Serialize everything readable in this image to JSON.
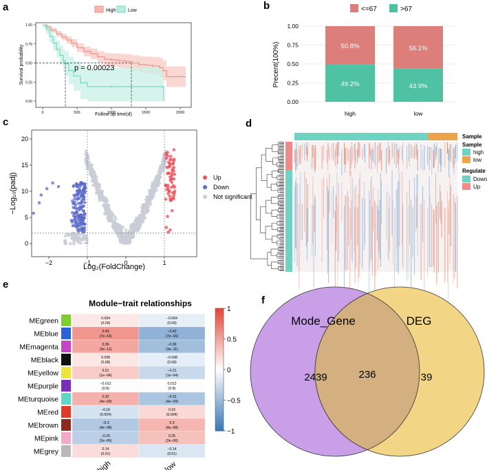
{
  "panel_letters": {
    "a": "a",
    "b": "b",
    "c": "c",
    "d": "d",
    "e": "e",
    "f": "f"
  },
  "colors": {
    "high": "#f08a80",
    "low": "#6dd6bd",
    "up": "#f0505a",
    "down": "#5a6ac8",
    "ns": "#c9ccd6",
    "teal": "#6fd3c4",
    "orange": "#eba44a",
    "venn_left": "#c9a0e8",
    "venn_right": "#f3d586",
    "overlap": "#d4b080",
    "hm_low": "#3c78b8",
    "hm_high": "#e8503c"
  },
  "chart_data": [
    {
      "type": "line",
      "panel": "a",
      "title": "",
      "legend": [
        "High",
        "Low"
      ],
      "xlabel": "Follow up time(d)",
      "ylabel": "Survival probability",
      "xlim": [
        0,
        2100
      ],
      "ylim": [
        0,
        1
      ],
      "xticks": [
        0,
        500,
        1000,
        1500,
        2000
      ],
      "yticks": [
        "0.00",
        "0.25",
        "0.50",
        "0.75",
        "1.00"
      ],
      "annotation": "p = 0.00023",
      "median_survival": {
        "low": 330,
        "high": 1290
      },
      "series": [
        {
          "name": "High",
          "x": [
            0,
            60,
            120,
            200,
            280,
            350,
            420,
            500,
            600,
            700,
            800,
            900,
            1000,
            1100,
            1200,
            1300,
            1400,
            1500,
            1600,
            1700,
            1750,
            1800,
            2080
          ],
          "y": [
            1,
            0.97,
            0.93,
            0.88,
            0.84,
            0.8,
            0.76,
            0.7,
            0.65,
            0.62,
            0.58,
            0.55,
            0.54,
            0.53,
            0.52,
            0.5,
            0.48,
            0.47,
            0.46,
            0.44,
            0.4,
            0.32,
            0.32
          ]
        },
        {
          "name": "Low",
          "x": [
            0,
            50,
            100,
            150,
            200,
            250,
            300,
            330,
            380,
            450,
            550,
            650,
            1000,
            1500,
            1750,
            1760
          ],
          "y": [
            1,
            0.94,
            0.85,
            0.76,
            0.68,
            0.6,
            0.53,
            0.49,
            0.4,
            0.33,
            0.24,
            0.19,
            0.19,
            0.19,
            0.19,
            0
          ]
        }
      ]
    },
    {
      "type": "bar",
      "panel": "b",
      "legend": [
        "<=67",
        ">67"
      ],
      "categories": [
        "high",
        "low"
      ],
      "ylabel": "Precent(100%)",
      "yticks": [
        "0.00",
        "0.25",
        "0.50",
        "0.75",
        "1.00"
      ],
      "ylim": [
        0,
        1
      ],
      "series": [
        {
          "name": ">67",
          "values": [
            0.492,
            0.439
          ],
          "labels": [
            "49.2%",
            "43.9%"
          ]
        },
        {
          "name": "<=67",
          "values": [
            0.508,
            0.561
          ],
          "labels": [
            "50.8%",
            "56.1%"
          ]
        }
      ]
    },
    {
      "type": "scatter",
      "panel": "c",
      "xlabel": "Log₂(FoldChange)",
      "ylabel": "−Log₁₀(padj)",
      "xlim": [
        -2.5,
        1.6
      ],
      "ylim": [
        0,
        20.5
      ],
      "xticks": [
        -2,
        -1,
        0,
        1
      ],
      "yticks": [
        0,
        5,
        10,
        15,
        20
      ],
      "fc_cutoff": 1,
      "padj_cutoff_log": 2,
      "legend": [
        "Up",
        "Down",
        "Not significant"
      ]
    },
    {
      "type": "heatmap",
      "panel": "d",
      "annotation_title_top": "Sample",
      "legend_sample_title": "Sample",
      "legend_sample": [
        "high",
        "low"
      ],
      "legend_regulate_title": "Regulate",
      "legend_regulate": [
        "Down",
        "Up"
      ],
      "high_fraction": 0.82,
      "up_fraction": 0.22
    },
    {
      "type": "heatmap",
      "panel": "e",
      "title": "Module−trait relationships",
      "columns": [
        "high",
        "low"
      ],
      "rows": [
        "MEgreen",
        "MEblue",
        "MEmagenta",
        "MEblack",
        "MEyellow",
        "MEpurple",
        "MEturquoise",
        "MEred",
        "MEbrown",
        "MEpink",
        "MEgrey"
      ],
      "module_colors": [
        "#7fcf2a",
        "#2a63d8",
        "#c843c8",
        "#111111",
        "#f0e43a",
        "#7a2fb8",
        "#5ed6c8",
        "#e03a2a",
        "#8a2a20",
        "#f4a8c8",
        "#b8b8b8"
      ],
      "values": [
        [
          0.094,
          -0.094
        ],
        [
          0.43,
          -0.43
        ],
        [
          0.36,
          -0.36
        ],
        [
          0.098,
          -0.098
        ],
        [
          0.21,
          -0.21
        ],
        [
          -0.012,
          0.012
        ],
        [
          0.32,
          -0.32
        ],
        [
          -0.16,
          0.16
        ],
        [
          -0.3,
          0.3
        ],
        [
          -0.26,
          0.26
        ],
        [
          0.14,
          -0.14
        ]
      ],
      "value_labels": [
        [
          "0.094",
          "−0.094"
        ],
        [
          "0.43",
          "−0.43"
        ],
        [
          "0.36",
          "−0.36"
        ],
        [
          "0.098",
          "−0.098"
        ],
        [
          "0.21",
          "−0.21"
        ],
        [
          "−0.012",
          "0.012"
        ],
        [
          "0.32",
          "−0.32"
        ],
        [
          "−0.16",
          "0.16"
        ],
        [
          "−0.3",
          "0.3"
        ],
        [
          "−0.26",
          "0.26"
        ],
        [
          "0.14",
          "−0.14"
        ]
      ],
      "p_labels": [
        [
          "(0.09)",
          "(0.09)"
        ],
        [
          "(7e−16)",
          "(7e−16)"
        ],
        [
          "(3e−11)",
          "(3e−11)"
        ],
        [
          "(0.08)",
          "(0.08)"
        ],
        [
          "(1e−04)",
          "(1e−04)"
        ],
        [
          "(0.8)",
          "(0.8)"
        ],
        [
          "(4e−09)",
          "(4e−09)"
        ],
        [
          "(0.004)",
          "(0.004)"
        ],
        [
          "(4e−08)",
          "(4e−08)"
        ],
        [
          "(2e−06)",
          "(2e−06)"
        ],
        [
          "(0.01)",
          "(0.01)"
        ]
      ],
      "scale_ticks": [
        "1",
        "0.5",
        "0",
        "−0.5",
        "−1"
      ],
      "scale_range": [
        -1,
        1
      ]
    },
    {
      "type": "venn",
      "panel": "f",
      "sets": [
        "Mode_Gene",
        "DEG"
      ],
      "left_only": "2439",
      "intersection": "236",
      "right_only": "39"
    }
  ]
}
